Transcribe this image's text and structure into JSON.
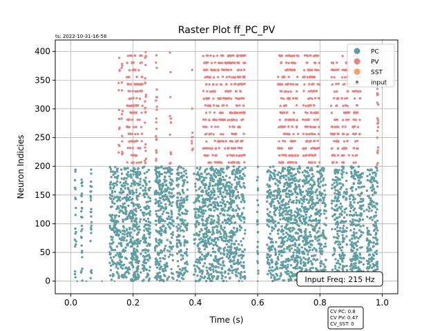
{
  "timestamp": "ts: 2022-10-31-16-56",
  "chart_data": {
    "type": "scatter",
    "title": "Raster Plot ff_PC_PV",
    "xlabel": "Time (s)",
    "ylabel": "Neuron Indicies",
    "xlim": [
      -0.05,
      1.05
    ],
    "ylim": [
      -22,
      420
    ],
    "xticks": [
      0.0,
      0.2,
      0.4,
      0.6,
      0.8,
      1.0
    ],
    "xtick_labels": [
      "0.0",
      "0.2",
      "0.4",
      "0.6",
      "0.8",
      "1.0"
    ],
    "yticks": [
      0,
      50,
      100,
      150,
      200,
      250,
      300,
      350,
      400
    ],
    "ytick_labels": [
      "0",
      "50",
      "100",
      "150",
      "200",
      "250",
      "300",
      "350",
      "400"
    ],
    "grid": true,
    "legend_position": "top-right",
    "series": [
      {
        "name": "PC",
        "color": "#5f9ea0",
        "neuron_range": [
          0,
          200
        ],
        "burst_windows": [
          [
            0.125,
            0.225
          ],
          [
            0.23,
            0.255
          ],
          [
            0.27,
            0.33
          ],
          [
            0.34,
            0.375
          ],
          [
            0.395,
            0.56
          ],
          [
            0.63,
            0.82
          ],
          [
            0.845,
            0.88
          ],
          [
            0.895,
            0.935
          ],
          [
            0.95,
            0.985
          ]
        ],
        "sparse_times": [
          0.015,
          0.035,
          0.065,
          0.285,
          0.6,
          0.84,
          0.885,
          0.94
        ]
      },
      {
        "name": "PV",
        "color": "#f08080",
        "neuron_range": [
          200,
          400
        ],
        "burst_windows": [
          [
            0.18,
            0.23
          ],
          [
            0.425,
            0.56
          ],
          [
            0.665,
            0.73
          ],
          [
            0.745,
            0.8
          ],
          [
            0.835,
            0.86
          ],
          [
            0.87,
            0.895
          ],
          [
            0.905,
            0.93
          ]
        ],
        "sparse_times": [
          0.155,
          0.165,
          0.39,
          0.24,
          0.275,
          0.32,
          0.985
        ]
      },
      {
        "name": "SST",
        "color": "#f4a460",
        "neuron_range": [],
        "burst_windows": [],
        "sparse_times": []
      },
      {
        "name": "input",
        "color": "#708090",
        "neuron_range": [
          0,
          0
        ],
        "burst_windows": [],
        "sparse_times": [
          0.02,
          0.05,
          0.1,
          0.14,
          0.2,
          0.25,
          0.3,
          0.35,
          0.4,
          0.45,
          0.5,
          0.55,
          0.6,
          0.65,
          0.7,
          0.75,
          0.8,
          0.85,
          0.9,
          0.95
        ]
      }
    ],
    "annotations": {
      "input_freq": "Input Freq: 215 Hz",
      "cv_lines": [
        "CV PC: 0.8",
        "CV PV: 0.47",
        "CV_SST: 0"
      ]
    }
  }
}
